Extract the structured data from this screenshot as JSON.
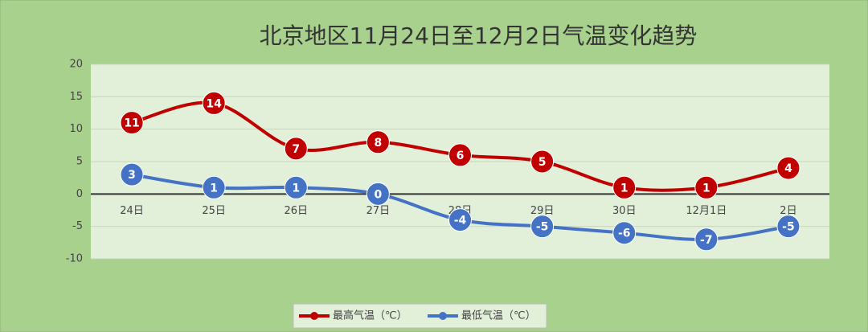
{
  "chart_data": {
    "type": "line",
    "title": "北京地区11月24日至12月2日气温变化趋势",
    "categories": [
      "24日",
      "25日",
      "26日",
      "27日",
      "28日",
      "29日",
      "30日",
      "12月1日",
      "2日"
    ],
    "series": [
      {
        "name": "最高气温（℃）",
        "color": "#c00000",
        "values": [
          11,
          14,
          7,
          8,
          6,
          5,
          1,
          1,
          4
        ]
      },
      {
        "name": "最低气温（℃）",
        "color": "#4472c4",
        "values": [
          3,
          1,
          1,
          0,
          -4,
          -5,
          -6,
          -7,
          -5
        ]
      }
    ],
    "ylim": [
      -10,
      20
    ],
    "yticks": [
      -10,
      -5,
      0,
      5,
      10,
      15,
      20
    ],
    "grid": true,
    "smooth": true,
    "legend": "bottom"
  }
}
